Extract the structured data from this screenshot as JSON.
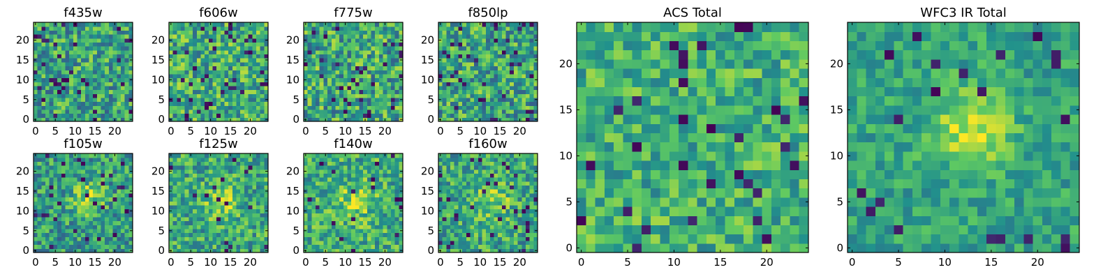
{
  "figure": {
    "colormap": "viridis",
    "colormap_stops": [
      "#440154",
      "#3b528b",
      "#21918c",
      "#5ec962",
      "#fde725"
    ],
    "axis_color": "#000000",
    "background": "#ffffff"
  },
  "chart_data": [
    {
      "type": "heatmap",
      "title": "f435w",
      "grid_size": 25,
      "xlim": [
        -0.5,
        24.5
      ],
      "ylim": [
        -0.5,
        24.5
      ],
      "xticks": [
        "0",
        "5",
        "10",
        "15",
        "20"
      ],
      "yticks": [
        "0",
        "5",
        "10",
        "15",
        "20"
      ],
      "seed": 11,
      "base": 0.58,
      "noise": 0.28,
      "dark_fraction": 0.06,
      "blob": null
    },
    {
      "type": "heatmap",
      "title": "f606w",
      "grid_size": 25,
      "xlim": [
        -0.5,
        24.5
      ],
      "ylim": [
        -0.5,
        24.5
      ],
      "xticks": [
        "0",
        "5",
        "10",
        "15",
        "20"
      ],
      "yticks": [
        "0",
        "5",
        "10",
        "15",
        "20"
      ],
      "seed": 23,
      "base": 0.62,
      "noise": 0.28,
      "dark_fraction": 0.06,
      "blob": null
    },
    {
      "type": "heatmap",
      "title": "f775w",
      "grid_size": 25,
      "xlim": [
        -0.5,
        24.5
      ],
      "ylim": [
        -0.5,
        24.5
      ],
      "xticks": [
        "0",
        "5",
        "10",
        "15",
        "20"
      ],
      "yticks": [
        "0",
        "5",
        "10",
        "15",
        "20"
      ],
      "seed": 37,
      "base": 0.6,
      "noise": 0.3,
      "dark_fraction": 0.05,
      "blob": null
    },
    {
      "type": "heatmap",
      "title": "f850lp",
      "grid_size": 25,
      "xlim": [
        -0.5,
        24.5
      ],
      "ylim": [
        -0.5,
        24.5
      ],
      "xticks": [
        "0",
        "5",
        "10",
        "15",
        "20"
      ],
      "yticks": [
        "0",
        "5",
        "10",
        "15",
        "20"
      ],
      "seed": 41,
      "base": 0.58,
      "noise": 0.3,
      "dark_fraction": 0.06,
      "blob": null
    },
    {
      "type": "heatmap",
      "title": "f105w",
      "grid_size": 25,
      "xlim": [
        -0.5,
        24.5
      ],
      "ylim": [
        -0.5,
        24.5
      ],
      "xticks": [
        "0",
        "5",
        "10",
        "15",
        "20"
      ],
      "yticks": [
        "0",
        "5",
        "10",
        "15",
        "20"
      ],
      "seed": 53,
      "base": 0.55,
      "noise": 0.25,
      "dark_fraction": 0.04,
      "blob": {
        "x": 13,
        "y": 13,
        "amp": 0.3,
        "sigma": 3
      }
    },
    {
      "type": "heatmap",
      "title": "f125w",
      "grid_size": 25,
      "xlim": [
        -0.5,
        24.5
      ],
      "ylim": [
        -0.5,
        24.5
      ],
      "xticks": [
        "0",
        "5",
        "10",
        "15",
        "20"
      ],
      "yticks": [
        "0",
        "5",
        "10",
        "15",
        "20"
      ],
      "seed": 67,
      "base": 0.6,
      "noise": 0.25,
      "dark_fraction": 0.03,
      "blob": {
        "x": 13,
        "y": 12,
        "amp": 0.25,
        "sigma": 3
      }
    },
    {
      "type": "heatmap",
      "title": "f140w",
      "grid_size": 25,
      "xlim": [
        -0.5,
        24.5
      ],
      "ylim": [
        -0.5,
        24.5
      ],
      "xticks": [
        "0",
        "5",
        "10",
        "15",
        "20"
      ],
      "yticks": [
        "0",
        "5",
        "10",
        "15",
        "20"
      ],
      "seed": 71,
      "base": 0.62,
      "noise": 0.25,
      "dark_fraction": 0.03,
      "blob": {
        "x": 12,
        "y": 12,
        "amp": 0.2,
        "sigma": 3.5
      }
    },
    {
      "type": "heatmap",
      "title": "f160w",
      "grid_size": 25,
      "xlim": [
        -0.5,
        24.5
      ],
      "ylim": [
        -0.5,
        24.5
      ],
      "xticks": [
        "0",
        "5",
        "10",
        "15",
        "20"
      ],
      "yticks": [
        "0",
        "5",
        "10",
        "15",
        "20"
      ],
      "seed": 89,
      "base": 0.6,
      "noise": 0.25,
      "dark_fraction": 0.04,
      "blob": {
        "x": 13,
        "y": 13,
        "amp": 0.2,
        "sigma": 3.5
      }
    },
    {
      "type": "heatmap",
      "title": "ACS Total",
      "grid_size": 25,
      "xlim": [
        -0.5,
        24.5
      ],
      "ylim": [
        -0.5,
        24.5
      ],
      "xticks": [
        "0",
        "5",
        "10",
        "15",
        "20"
      ],
      "yticks": [
        "0",
        "5",
        "10",
        "15",
        "20"
      ],
      "seed": 97,
      "base": 0.64,
      "noise": 0.22,
      "dark_fraction": 0.05,
      "blob": null
    },
    {
      "type": "heatmap",
      "title": "WFC3 IR Total",
      "grid_size": 25,
      "xlim": [
        -0.5,
        24.5
      ],
      "ylim": [
        -0.5,
        24.5
      ],
      "xticks": [
        "0",
        "5",
        "10",
        "15",
        "20"
      ],
      "yticks": [
        "0",
        "5",
        "10",
        "15",
        "20"
      ],
      "seed": 131,
      "base": 0.58,
      "noise": 0.16,
      "dark_fraction": 0.04,
      "blob": {
        "x": 13,
        "y": 13,
        "amp": 0.35,
        "sigma": 3
      }
    }
  ]
}
